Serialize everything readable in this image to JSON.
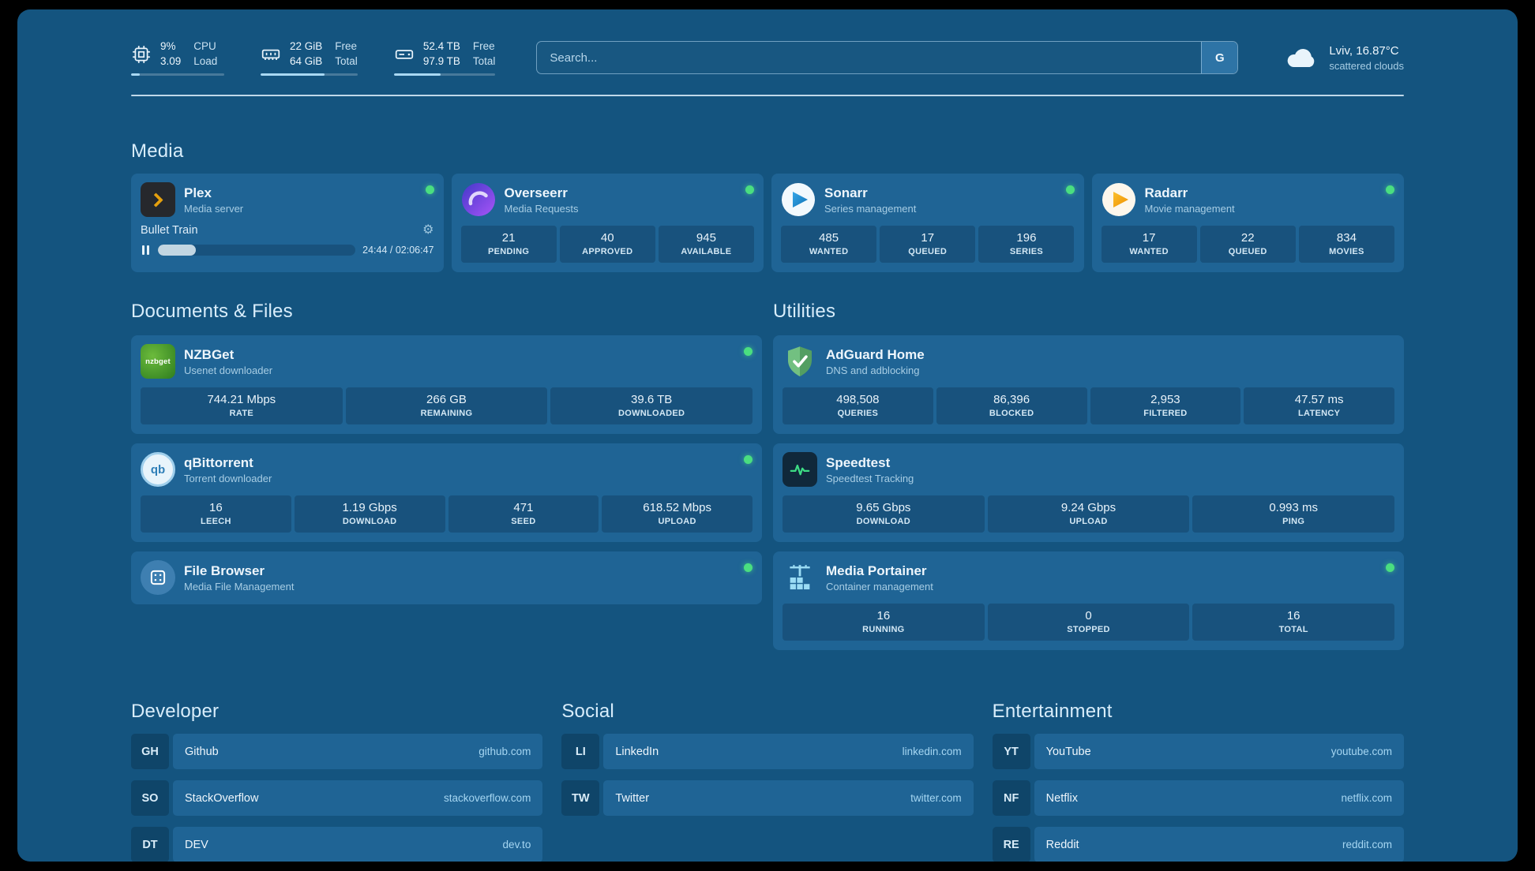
{
  "colors": {
    "status_online": "#4ade80",
    "accent": "#a9d8f3"
  },
  "icons": {
    "gear": "⚙"
  },
  "topbar": {
    "widgets": [
      {
        "icon": "cpu-icon",
        "values": [
          "9%",
          "3.09"
        ],
        "labels": [
          "CPU",
          "Load"
        ],
        "bar_pct": 9
      },
      {
        "icon": "ram-icon",
        "values": [
          "22 GiB",
          "64 GiB"
        ],
        "labels": [
          "Free",
          "Total"
        ],
        "bar_pct": 66
      },
      {
        "icon": "disk-icon",
        "values": [
          "52.4 TB",
          "97.9 TB"
        ],
        "labels": [
          "Free",
          "Total"
        ],
        "bar_pct": 46
      }
    ],
    "search": {
      "placeholder": "Search...",
      "provider_button": "G"
    },
    "weather": {
      "location": "Lviv, 16.87°C",
      "condition": "scattered clouds"
    }
  },
  "sections": {
    "media": "Media",
    "documents": "Documents & Files",
    "utilities": "Utilities"
  },
  "services": {
    "plex": {
      "name": "Plex",
      "subtitle": "Media server",
      "now_playing": "Bullet Train",
      "time": "24:44 / 02:06:47",
      "progress_pct": 19
    },
    "overseerr": {
      "name": "Overseerr",
      "subtitle": "Media Requests",
      "stats": [
        {
          "value": "21",
          "label": "PENDING"
        },
        {
          "value": "40",
          "label": "APPROVED"
        },
        {
          "value": "945",
          "label": "AVAILABLE"
        }
      ]
    },
    "sonarr": {
      "name": "Sonarr",
      "subtitle": "Series management",
      "stats": [
        {
          "value": "485",
          "label": "WANTED"
        },
        {
          "value": "17",
          "label": "QUEUED"
        },
        {
          "value": "196",
          "label": "SERIES"
        }
      ]
    },
    "radarr": {
      "name": "Radarr",
      "subtitle": "Movie management",
      "stats": [
        {
          "value": "17",
          "label": "WANTED"
        },
        {
          "value": "22",
          "label": "QUEUED"
        },
        {
          "value": "834",
          "label": "MOVIES"
        }
      ]
    },
    "nzbget": {
      "name": "NZBGet",
      "subtitle": "Usenet downloader",
      "icon_text": "nzbget",
      "stats": [
        {
          "value": "744.21 Mbps",
          "label": "RATE"
        },
        {
          "value": "266 GB",
          "label": "REMAINING"
        },
        {
          "value": "39.6 TB",
          "label": "DOWNLOADED"
        }
      ]
    },
    "qbittorrent": {
      "name": "qBittorrent",
      "subtitle": "Torrent downloader",
      "icon_text": "qb",
      "stats": [
        {
          "value": "16",
          "label": "LEECH"
        },
        {
          "value": "1.19 Gbps",
          "label": "DOWNLOAD"
        },
        {
          "value": "471",
          "label": "SEED"
        },
        {
          "value": "618.52 Mbps",
          "label": "UPLOAD"
        }
      ]
    },
    "filebrowser": {
      "name": "File Browser",
      "subtitle": "Media File Management"
    },
    "adguard": {
      "name": "AdGuard Home",
      "subtitle": "DNS and adblocking",
      "stats": [
        {
          "value": "498,508",
          "label": "QUERIES"
        },
        {
          "value": "86,396",
          "label": "BLOCKED"
        },
        {
          "value": "2,953",
          "label": "FILTERED"
        },
        {
          "value": "47.57 ms",
          "label": "LATENCY"
        }
      ]
    },
    "speedtest": {
      "name": "Speedtest",
      "subtitle": "Speedtest Tracking",
      "stats": [
        {
          "value": "9.65 Gbps",
          "label": "DOWNLOAD"
        },
        {
          "value": "9.24 Gbps",
          "label": "UPLOAD"
        },
        {
          "value": "0.993 ms",
          "label": "PING"
        }
      ]
    },
    "portainer": {
      "name": "Media Portainer",
      "subtitle": "Container management",
      "stats": [
        {
          "value": "16",
          "label": "RUNNING"
        },
        {
          "value": "0",
          "label": "STOPPED"
        },
        {
          "value": "16",
          "label": "TOTAL"
        }
      ]
    }
  },
  "bookmarks": {
    "developer": {
      "title": "Developer",
      "items": [
        {
          "abbr": "GH",
          "name": "Github",
          "url": "github.com"
        },
        {
          "abbr": "SO",
          "name": "StackOverflow",
          "url": "stackoverflow.com"
        },
        {
          "abbr": "DT",
          "name": "DEV",
          "url": "dev.to"
        }
      ]
    },
    "social": {
      "title": "Social",
      "items": [
        {
          "abbr": "LI",
          "name": "LinkedIn",
          "url": "linkedin.com"
        },
        {
          "abbr": "TW",
          "name": "Twitter",
          "url": "twitter.com"
        }
      ]
    },
    "entertainment": {
      "title": "Entertainment",
      "items": [
        {
          "abbr": "YT",
          "name": "YouTube",
          "url": "youtube.com"
        },
        {
          "abbr": "NF",
          "name": "Netflix",
          "url": "netflix.com"
        },
        {
          "abbr": "RE",
          "name": "Reddit",
          "url": "reddit.com"
        }
      ]
    }
  }
}
